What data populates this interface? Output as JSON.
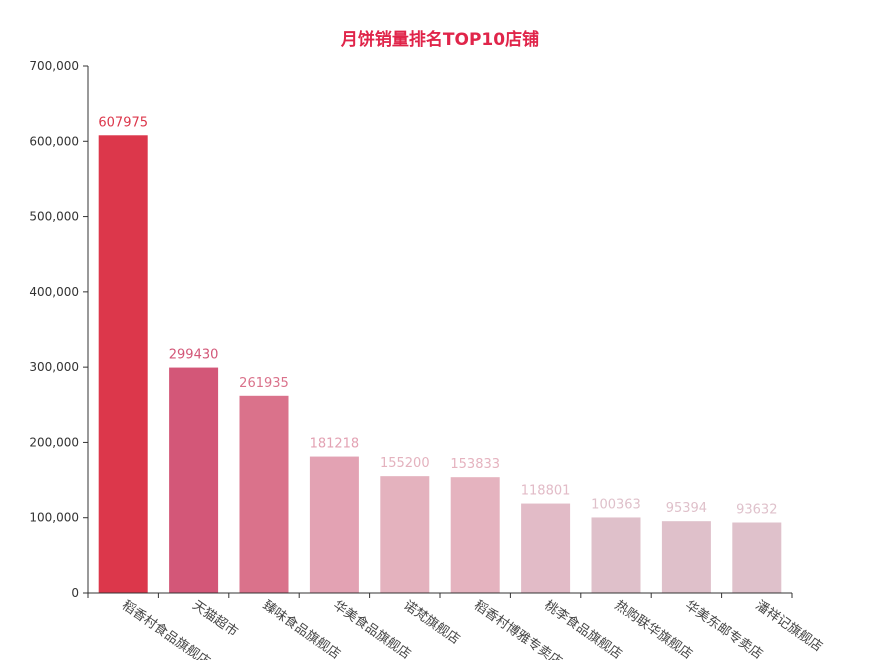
{
  "chart_data": {
    "type": "bar",
    "title": "月饼销量排名TOP10店铺",
    "title_color": "#e0254a",
    "xlabel": "",
    "ylabel": "",
    "ylim": [
      0,
      700000
    ],
    "yticks": [
      0,
      100000,
      200000,
      300000,
      400000,
      500000,
      600000,
      700000
    ],
    "ytick_labels": [
      "0",
      "100,000",
      "200,000",
      "300,000",
      "400,000",
      "500,000",
      "600,000",
      "700,000"
    ],
    "grid": false,
    "categories": [
      "稻香村食品旗舰店",
      "天猫超市",
      "臻味食品旗舰店",
      "华美食品旗舰店",
      "诺梵旗舰店",
      "稻香村博雅专卖店",
      "桃李食品旗舰店",
      "热购联华旗舰店",
      "华美东邮专卖店",
      "潘祥记旗舰店"
    ],
    "values": [
      607975,
      299430,
      261935,
      181218,
      155200,
      153833,
      118801,
      100363,
      95394,
      93632
    ],
    "colors": [
      "#dc374b",
      "#d35778",
      "#da728b",
      "#e3a2b3",
      "#e4b2be",
      "#e5b3bf",
      "#e2bbc7",
      "#dfc0ca",
      "#dfc0ca",
      "#dfc1cb"
    ]
  }
}
